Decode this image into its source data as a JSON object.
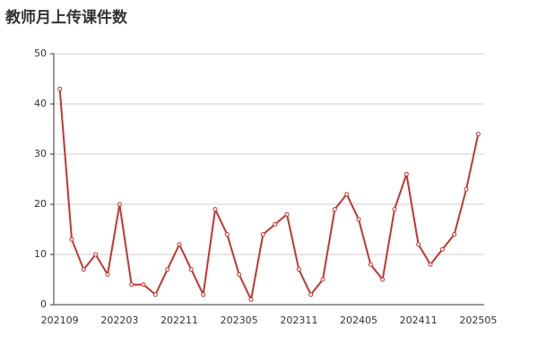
{
  "chart_data": {
    "type": "line",
    "title": "教师月上传课件数",
    "categories": [
      "202109",
      null,
      null,
      null,
      null,
      "202203",
      null,
      null,
      null,
      null,
      "202211",
      null,
      null,
      null,
      null,
      "202305",
      null,
      null,
      null,
      null,
      "202311",
      null,
      null,
      null,
      null,
      "202405",
      null,
      null,
      null,
      null,
      "202411",
      null,
      null,
      null,
      null,
      "202505"
    ],
    "series": [
      {
        "name": "上传课件数",
        "color": "#c23531",
        "values": [
          43,
          13,
          7,
          10,
          6,
          20,
          4,
          4,
          2,
          7,
          12,
          7,
          2,
          19,
          14,
          6,
          1,
          14,
          16,
          18,
          7,
          2,
          5,
          19,
          22,
          17,
          8,
          5,
          19,
          26,
          12,
          8,
          11,
          14,
          23,
          34
        ]
      }
    ],
    "ylim": [
      0,
      50
    ],
    "yticks": [
      0,
      10,
      20,
      30,
      40,
      50
    ],
    "grid": true
  }
}
